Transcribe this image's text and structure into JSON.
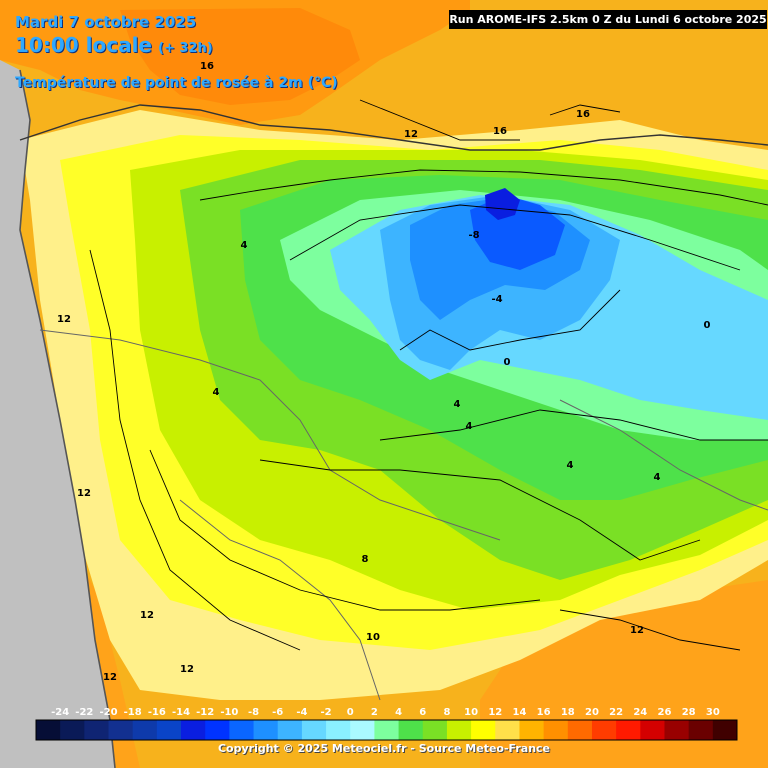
{
  "header": {
    "date": "Mardi 7 octobre 2025",
    "time": "10:00 locale",
    "lead": "(+ 32h)",
    "field": "Température de point de rosée à 2m (°C)"
  },
  "run_info": "Run AROME-IFS 2.5km 0 Z du Lundi 6 octobre 2025",
  "copyright": "Copyright © 2025 Meteociel.fr - Source Meteo-France",
  "colorbar": {
    "ticks": [
      "-24",
      "-22",
      "-20",
      "-18",
      "-16",
      "-14",
      "-12",
      "-10",
      "-8",
      "-6",
      "-4",
      "-2",
      "0",
      "2",
      "4",
      "6",
      "8",
      "10",
      "12",
      "14",
      "16",
      "18",
      "20",
      "22",
      "24",
      "26",
      "28",
      "30"
    ],
    "colors": [
      "#060e36",
      "#0a1a57",
      "#0f2473",
      "#123090",
      "#0e3aab",
      "#0a44c8",
      "#0a1ee0",
      "#0033ff",
      "#0a66ff",
      "#1e90ff",
      "#3db4ff",
      "#66d8ff",
      "#8af0ff",
      "#aafaff",
      "#7dff9e",
      "#4ee14a",
      "#7ae025",
      "#c8f000",
      "#ffff00",
      "#ffe04a",
      "#ffb400",
      "#ff9000",
      "#ff6a00",
      "#ff3c00",
      "#ff1a00",
      "#d40000",
      "#990000",
      "#6a0000",
      "#400000"
    ]
  },
  "contour_labels": [
    {
      "text": "16"
    },
    {
      "text": "12"
    },
    {
      "text": "16"
    },
    {
      "text": "16"
    },
    {
      "text": "4"
    },
    {
      "text": "-8"
    },
    {
      "text": "12"
    },
    {
      "text": "-4"
    },
    {
      "text": "0"
    },
    {
      "text": "0"
    },
    {
      "text": "4"
    },
    {
      "text": "4"
    },
    {
      "text": "4"
    },
    {
      "text": "4"
    },
    {
      "text": "4"
    },
    {
      "text": "12"
    },
    {
      "text": "8"
    },
    {
      "text": "12"
    },
    {
      "text": "12"
    },
    {
      "text": "12"
    },
    {
      "text": "12"
    },
    {
      "text": "10"
    }
  ],
  "colors": {
    "sea": "#c0c0c0",
    "header_text": "#2fa8ff"
  }
}
